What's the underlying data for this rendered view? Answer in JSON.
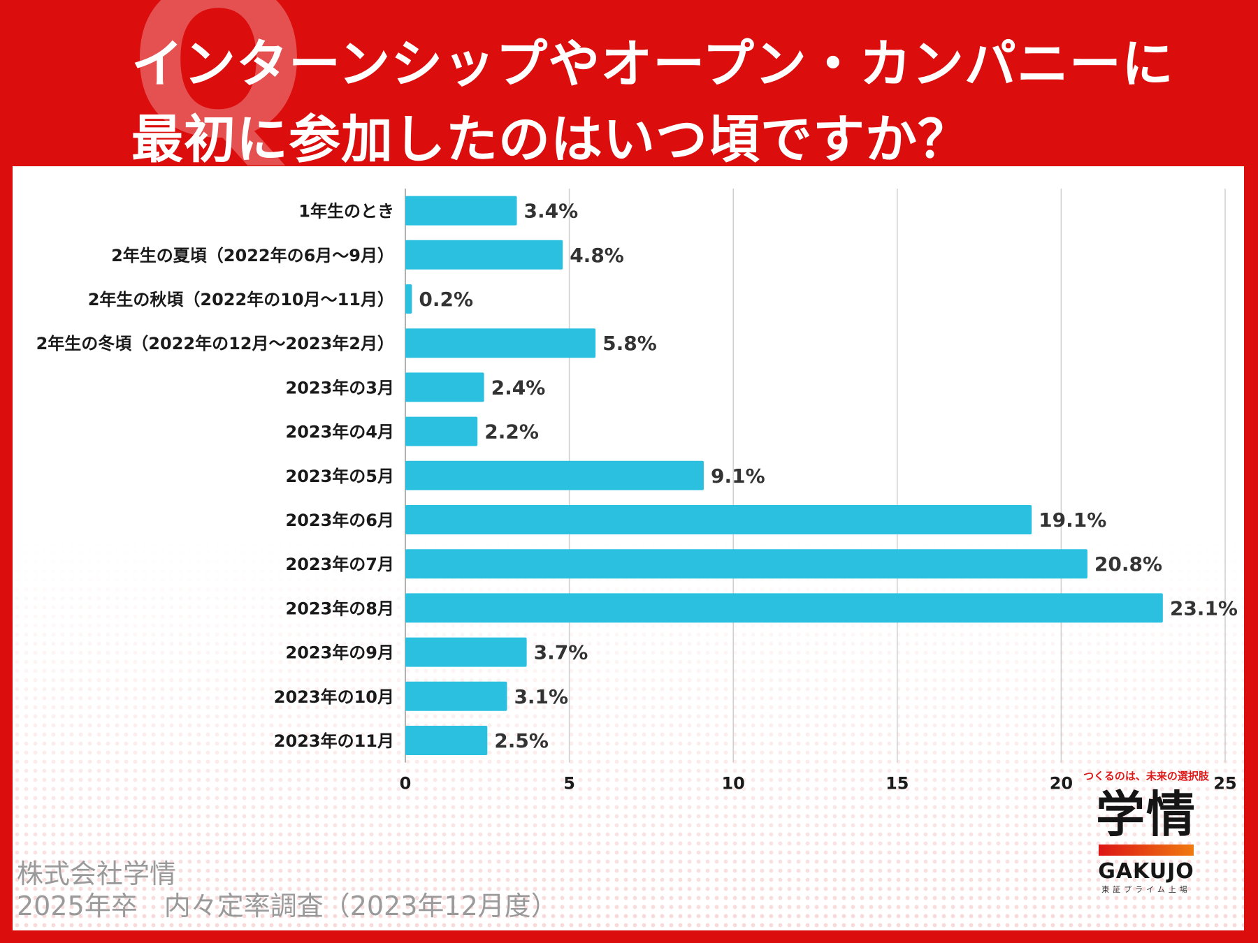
{
  "header": {
    "q_letter": "Q",
    "title_line1": "インターンシップやオープン・カンパニーに",
    "title_line2": "最初に参加したのはいつ頃ですか？"
  },
  "chart_data": {
    "type": "bar",
    "orientation": "horizontal",
    "title": "インターンシップやオープン・カンパニーに最初に参加したのはいつ頃ですか？",
    "categories": [
      "1年生のとき",
      "2年生の夏頃（2022年の6月～9月）",
      "2年生の秋頃（2022年の10月～11月）",
      "2年生の冬頃（2022年の12月～2023年2月）",
      "2023年の3月",
      "2023年の4月",
      "2023年の5月",
      "2023年の6月",
      "2023年の7月",
      "2023年の8月",
      "2023年の9月",
      "2023年の10月",
      "2023年の11月"
    ],
    "values": [
      3.4,
      4.8,
      0.2,
      5.8,
      2.4,
      2.2,
      9.1,
      19.1,
      20.8,
      23.1,
      3.7,
      3.1,
      2.5
    ],
    "data_labels": [
      "3.4%",
      "4.8%",
      "0.2%",
      "5.8%",
      "2.4%",
      "2.2%",
      "9.1%",
      "19.1%",
      "20.8%",
      "23.1%",
      "3.7%",
      "3.1%",
      "2.5%"
    ],
    "xlim": [
      0,
      25
    ],
    "xticks": [
      0,
      5,
      10,
      15,
      20,
      25
    ],
    "grid": true,
    "bar_color": "#2bc0e0"
  },
  "footer": {
    "company": "株式会社学情",
    "survey": "2025年卒　内々定率調査（2023年12月度）"
  },
  "logo": {
    "tagline": "つくるのは、未来の選択肢",
    "mark": "学情",
    "name": "GAKUJO",
    "sub": "東証プライム上場"
  },
  "colors": {
    "background": "#dc0d0d",
    "panel": "#ffffff",
    "bar": "#2bc0e0",
    "text": "#1a1a1a",
    "value_label": "#333333",
    "grid": "#cfcfcf"
  }
}
